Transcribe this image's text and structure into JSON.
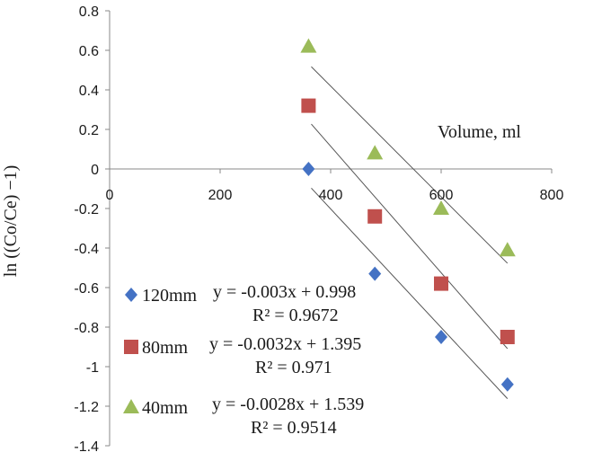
{
  "chart_data": {
    "type": "scatter",
    "title": "",
    "xlabel": "Volume, ml",
    "ylabel": "ln ((Co/Ce) −1)",
    "xlim": [
      0,
      800
    ],
    "ylim": [
      -1.4,
      0.8
    ],
    "x_ticks": [
      "0",
      "200",
      "400",
      "600",
      "800"
    ],
    "y_ticks": [
      "0.8",
      "0.6",
      "0.4",
      "0.2",
      "0",
      "-0.2",
      "-0.4",
      "-0.6",
      "-0.8",
      "-1",
      "-1.2",
      "-1.4"
    ],
    "grid": false,
    "legend_position": "bottom-left",
    "series": [
      {
        "name": "120mm",
        "marker": "diamond",
        "color": "#4472C4",
        "x": [
          360,
          480,
          600,
          720
        ],
        "y": [
          0.0,
          -0.53,
          -0.85,
          -1.09
        ],
        "equation": "y = -0.003x + 0.998",
        "r_squared": "R² = 0.9672",
        "trend_slope": -0.003,
        "trend_intercept": 0.998
      },
      {
        "name": "80mm",
        "marker": "square",
        "color": "#C0504D",
        "x": [
          360,
          480,
          600,
          720
        ],
        "y": [
          0.32,
          -0.24,
          -0.58,
          -0.85
        ],
        "equation": "y = -0.0032x + 1.395",
        "r_squared": "R² = 0.971",
        "trend_slope": -0.0032,
        "trend_intercept": 1.395
      },
      {
        "name": "40mm",
        "marker": "triangle",
        "color": "#9BBB59",
        "x": [
          360,
          480,
          600,
          720
        ],
        "y": [
          0.62,
          0.08,
          -0.2,
          -0.41
        ],
        "equation": "y = -0.0028x + 1.539",
        "r_squared": "R² = 0.9514",
        "trend_slope": -0.0028,
        "trend_intercept": 1.539
      }
    ]
  }
}
